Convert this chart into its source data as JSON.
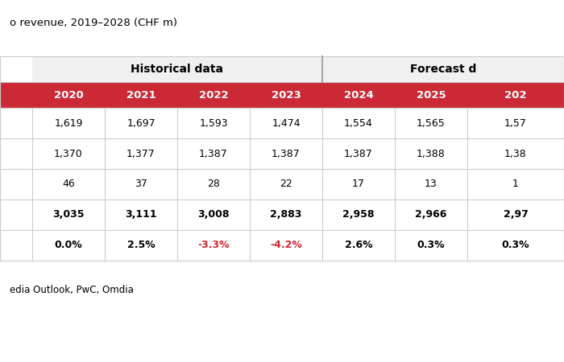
{
  "title": "o revenue, 2019–2028 (CHF m)",
  "source": "edia Outlook, PwC, Omdia",
  "col_header_color": "#cc2936",
  "section_hist_label": "Historical data",
  "section_fore_label": "Forecast d",
  "columns": [
    "",
    "2020",
    "2021",
    "2022",
    "2023",
    "2024",
    "2025",
    "202"
  ],
  "hist_col_range": [
    1,
    4
  ],
  "fore_col_range": [
    5,
    7
  ],
  "rows": [
    {
      "values": [
        "",
        "1,619",
        "1,697",
        "1,593",
        "1,474",
        "1,554",
        "1,565",
        "1,57"
      ],
      "bold": false,
      "red_indices": []
    },
    {
      "values": [
        "",
        "1,370",
        "1,377",
        "1,387",
        "1,387",
        "1,387",
        "1,388",
        "1,38"
      ],
      "bold": false,
      "red_indices": []
    },
    {
      "values": [
        "",
        "46",
        "37",
        "28",
        "22",
        "17",
        "13",
        "1"
      ],
      "bold": false,
      "red_indices": []
    },
    {
      "values": [
        "",
        "3,035",
        "3,111",
        "3,008",
        "2,883",
        "2,958",
        "2,966",
        "2,97"
      ],
      "bold": true,
      "red_indices": []
    },
    {
      "values": [
        "",
        "0.0%",
        "2.5%",
        "-3.3%",
        "-4.2%",
        "2.6%",
        "0.3%",
        "0.3%"
      ],
      "bold": true,
      "red_indices": [
        3,
        4
      ]
    }
  ],
  "red_color": "#cc2936",
  "grid_color": "#cccccc",
  "white": "#ffffff",
  "light_gray": "#f0f0f0",
  "section_gray": "#eeeeee"
}
